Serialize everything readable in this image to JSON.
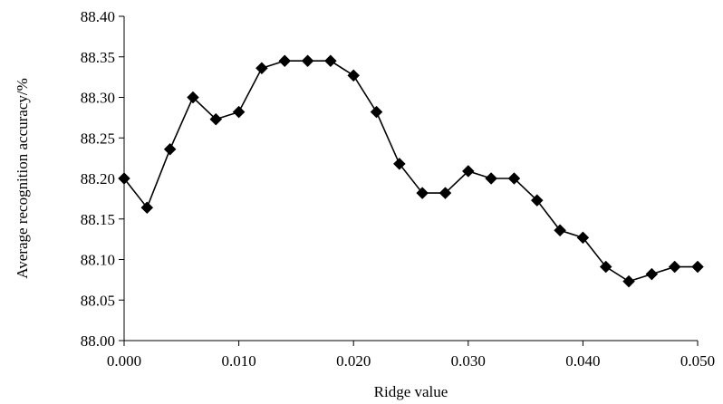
{
  "chart_data": {
    "type": "line",
    "xlabel": "Ridge value",
    "ylabel": "Average recognition accuracy/%",
    "xlim": [
      0.0,
      0.05
    ],
    "ylim": [
      88.0,
      88.4
    ],
    "x_ticks": [
      "0.000",
      "0.010",
      "0.020",
      "0.030",
      "0.040",
      "0.050"
    ],
    "y_ticks": [
      "88.00",
      "88.05",
      "88.10",
      "88.15",
      "88.20",
      "88.25",
      "88.30",
      "88.35",
      "88.40"
    ],
    "grid": false,
    "legend": "none",
    "series": [
      {
        "marker": "diamond",
        "color": "#000000",
        "x": [
          0.0,
          0.002,
          0.004,
          0.006,
          0.008,
          0.01,
          0.012,
          0.014,
          0.016,
          0.018,
          0.02,
          0.022,
          0.024,
          0.026,
          0.028,
          0.03,
          0.032,
          0.034,
          0.036,
          0.038,
          0.04,
          0.042,
          0.044,
          0.046,
          0.048,
          0.05
        ],
        "values": [
          88.2,
          88.164,
          88.236,
          88.3,
          88.273,
          88.282,
          88.336,
          88.345,
          88.345,
          88.345,
          88.327,
          88.282,
          88.218,
          88.182,
          88.182,
          88.209,
          88.2,
          88.2,
          88.173,
          88.136,
          88.127,
          88.091,
          88.073,
          88.082,
          88.091,
          88.091
        ]
      }
    ]
  }
}
